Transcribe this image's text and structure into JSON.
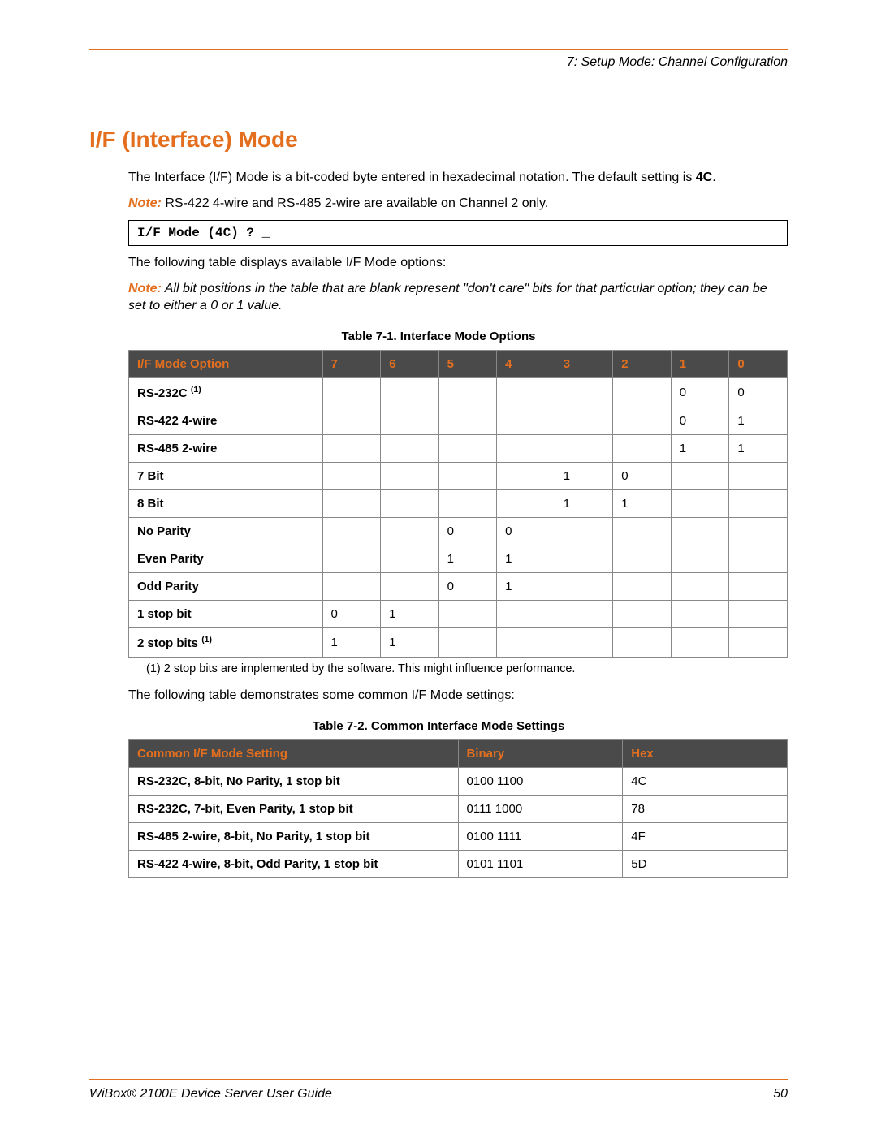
{
  "header": {
    "breadcrumb": "7: Setup Mode: Channel Configuration"
  },
  "section": {
    "title": "I/F (Interface) Mode",
    "intro_1a": "The Interface (I/F) Mode is a bit-coded byte entered in hexadecimal notation. The default setting is ",
    "intro_1b": "4C",
    "intro_1c": ".",
    "note1_label": "Note:",
    "note1_text": " RS-422 4-wire and RS-485 2-wire are available on Channel 2 only.",
    "code_prompt": "I/F Mode (4C) ? _",
    "intro_2": "The following table displays available I/F Mode options:",
    "note2_label": "Note:",
    "note2_text": " All bit positions in the table that are blank represent \"don't care\" bits for that particular option; they can be set to either a 0 or 1 value.",
    "intro_3": "The following table demonstrates some common I/F Mode settings:"
  },
  "table1": {
    "caption": "Table 7-1. Interface Mode Options",
    "header_label": "I/F Mode Option",
    "bits": [
      "7",
      "6",
      "5",
      "4",
      "3",
      "2",
      "1",
      "0"
    ],
    "rows": [
      {
        "label": "RS-232C",
        "sup": "(1)",
        "cells": [
          "",
          "",
          "",
          "",
          "",
          "",
          "0",
          "0"
        ]
      },
      {
        "label": "RS-422 4-wire",
        "sup": "",
        "cells": [
          "",
          "",
          "",
          "",
          "",
          "",
          "0",
          "1"
        ]
      },
      {
        "label": "RS-485 2-wire",
        "sup": "",
        "cells": [
          "",
          "",
          "",
          "",
          "",
          "",
          "1",
          "1"
        ]
      },
      {
        "label": "7 Bit",
        "sup": "",
        "cells": [
          "",
          "",
          "",
          "",
          "1",
          "0",
          "",
          ""
        ]
      },
      {
        "label": "8 Bit",
        "sup": "",
        "cells": [
          "",
          "",
          "",
          "",
          "1",
          "1",
          "",
          ""
        ]
      },
      {
        "label": "No Parity",
        "sup": "",
        "cells": [
          "",
          "",
          "0",
          "0",
          "",
          "",
          "",
          ""
        ]
      },
      {
        "label": "Even Parity",
        "sup": "",
        "cells": [
          "",
          "",
          "1",
          "1",
          "",
          "",
          "",
          ""
        ]
      },
      {
        "label": "Odd Parity",
        "sup": "",
        "cells": [
          "",
          "",
          "0",
          "1",
          "",
          "",
          "",
          ""
        ]
      },
      {
        "label": "1 stop bit",
        "sup": "",
        "cells": [
          "0",
          "1",
          "",
          "",
          "",
          "",
          "",
          ""
        ]
      },
      {
        "label": "2 stop bits",
        "sup": "(1)",
        "cells": [
          "1",
          "1",
          "",
          "",
          "",
          "",
          "",
          ""
        ]
      }
    ],
    "footnote": "(1) 2 stop bits are implemented by the software. This might influence performance."
  },
  "table2": {
    "caption": "Table 7-2. Common Interface Mode Settings",
    "headers": [
      "Common I/F Mode Setting",
      "Binary",
      "Hex"
    ],
    "rows": [
      {
        "setting": "RS-232C, 8-bit, No Parity, 1 stop bit",
        "binary": "0100 1100",
        "hex": "4C"
      },
      {
        "setting": "RS-232C, 7-bit, Even Parity, 1 stop bit",
        "binary": "0111 1000",
        "hex": "78"
      },
      {
        "setting": "RS-485 2-wire, 8-bit, No Parity, 1 stop bit",
        "binary": "0100 1111",
        "hex": "4F"
      },
      {
        "setting": "RS-422 4-wire, 8-bit, Odd Parity, 1 stop bit",
        "binary": "0101 1101",
        "hex": "5D"
      }
    ]
  },
  "footer": {
    "guide": "WiBox® 2100E Device Server User Guide",
    "page": "50"
  },
  "colors": {
    "accent": "#e36f1e",
    "table_header_bg": "#4a4a4a",
    "border": "#888888"
  }
}
